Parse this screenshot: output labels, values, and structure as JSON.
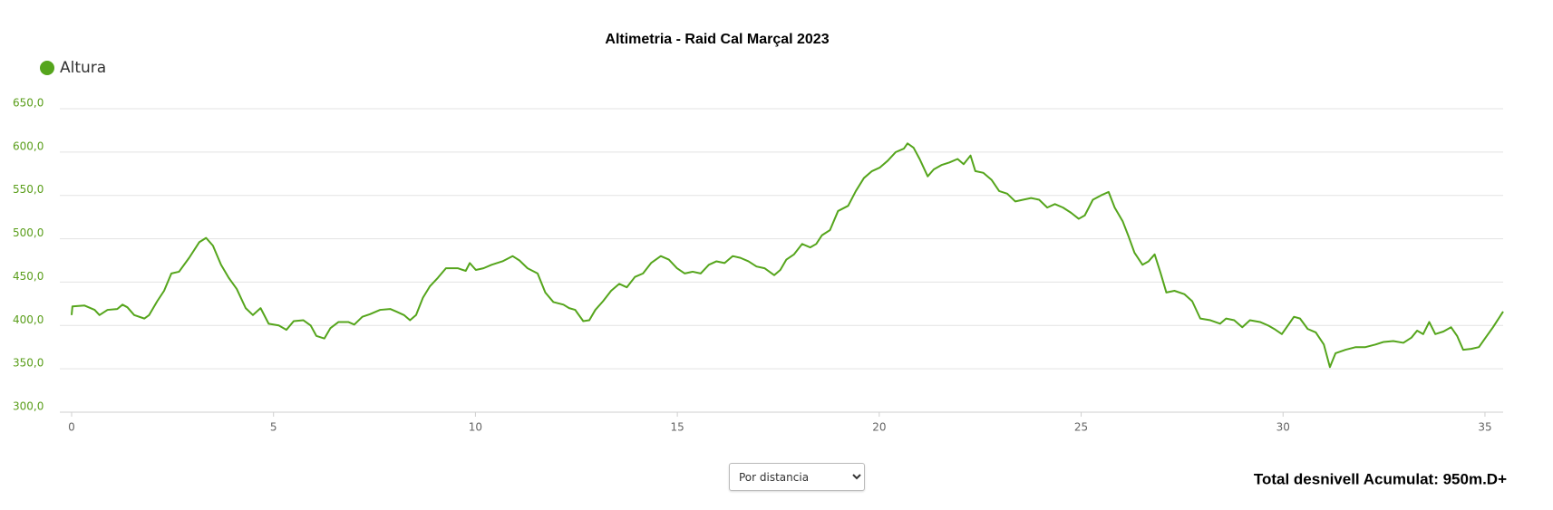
{
  "chart_data": {
    "type": "line",
    "title": "Altimetria - Raid Cal Marçal 2023",
    "annotation": "Total desnivell Acumulat: 950m.D+",
    "x": [
      0,
      0.02,
      0.32,
      0.57,
      0.69,
      0.89,
      1.13,
      1.26,
      1.38,
      1.55,
      1.8,
      1.92,
      2.12,
      2.29,
      2.47,
      2.66,
      2.91,
      3.16,
      3.33,
      3.5,
      3.7,
      3.89,
      4.09,
      4.31,
      4.49,
      4.68,
      4.88,
      5.13,
      5.32,
      5.5,
      5.74,
      5.92,
      6.06,
      6.26,
      6.41,
      6.61,
      6.85,
      7.0,
      7.2,
      7.39,
      7.64,
      7.89,
      8.04,
      8.23,
      8.38,
      8.53,
      8.7,
      8.87,
      9.07,
      9.27,
      9.56,
      9.76,
      9.86,
      10.01,
      10.2,
      10.4,
      10.67,
      10.92,
      11.09,
      11.29,
      11.54,
      11.73,
      11.93,
      12.18,
      12.32,
      12.47,
      12.67,
      12.82,
      12.97,
      13.16,
      13.36,
      13.56,
      13.75,
      13.95,
      14.15,
      14.35,
      14.59,
      14.79,
      14.99,
      15.18,
      15.38,
      15.58,
      15.78,
      15.97,
      16.17,
      16.37,
      16.56,
      16.76,
      16.96,
      17.16,
      17.4,
      17.55,
      17.7,
      17.89,
      18.09,
      18.29,
      18.44,
      18.58,
      18.78,
      18.98,
      19.23,
      19.42,
      19.62,
      19.82,
      20.01,
      20.21,
      20.41,
      20.61,
      20.7,
      20.85,
      21.0,
      21.2,
      21.35,
      21.54,
      21.74,
      21.94,
      22.09,
      22.26,
      22.38,
      22.58,
      22.78,
      22.97,
      23.17,
      23.37,
      23.56,
      23.76,
      23.96,
      24.16,
      24.35,
      24.55,
      24.75,
      24.94,
      25.09,
      25.29,
      25.49,
      25.68,
      25.83,
      26.03,
      26.18,
      26.32,
      26.52,
      26.67,
      26.82,
      26.97,
      27.11,
      27.31,
      27.56,
      27.75,
      27.95,
      28.2,
      28.44,
      28.59,
      28.79,
      28.99,
      29.18,
      29.43,
      29.63,
      29.78,
      29.97,
      30.12,
      30.27,
      30.42,
      30.61,
      30.81,
      31.01,
      31.16,
      31.3,
      31.55,
      31.8,
      32.04,
      32.29,
      32.49,
      32.73,
      32.98,
      33.18,
      33.32,
      33.47,
      33.62,
      33.77,
      33.97,
      34.16,
      34.31,
      34.46,
      34.66,
      34.85,
      35.0,
      35.2,
      35.45
    ],
    "series": [
      {
        "name": "Altura",
        "color": "#55a51c",
        "values": [
          412,
          422,
          423,
          418,
          412,
          418,
          419,
          424,
          421,
          412,
          408,
          412,
          428,
          440,
          460,
          462,
          478,
          496,
          501,
          492,
          470,
          455,
          442,
          420,
          412,
          420,
          402,
          400,
          395,
          405,
          406,
          400,
          388,
          385,
          397,
          404,
          404,
          401,
          410,
          413,
          418,
          419,
          416,
          412,
          406,
          412,
          432,
          445,
          455,
          466,
          466,
          463,
          472,
          464,
          466,
          470,
          474,
          480,
          475,
          466,
          460,
          438,
          427,
          424,
          420,
          418,
          405,
          406,
          418,
          428,
          440,
          448,
          444,
          456,
          460,
          472,
          480,
          476,
          466,
          460,
          462,
          460,
          470,
          474,
          472,
          480,
          478,
          474,
          468,
          466,
          458,
          464,
          476,
          482,
          494,
          490,
          494,
          504,
          510,
          532,
          538,
          555,
          570,
          578,
          582,
          590,
          600,
          604,
          610,
          605,
          592,
          572,
          580,
          585,
          588,
          592,
          586,
          596,
          578,
          576,
          568,
          555,
          552,
          543,
          545,
          547,
          545,
          536,
          540,
          536,
          530,
          523,
          527,
          545,
          550,
          554,
          536,
          520,
          502,
          484,
          470,
          474,
          482,
          460,
          438,
          440,
          436,
          428,
          408,
          406,
          402,
          408,
          406,
          398,
          406,
          404,
          400,
          396,
          390,
          400,
          410,
          408,
          396,
          392,
          378,
          352,
          368,
          372,
          375,
          375,
          378,
          381,
          382,
          380,
          386,
          394,
          390,
          404,
          390,
          393,
          398,
          388,
          372,
          373,
          375,
          385,
          398,
          416
        ]
      }
    ],
    "xlim": [
      0,
      35.45
    ],
    "xticks": [
      0,
      5,
      10,
      15,
      20,
      25,
      30,
      35
    ],
    "ylim": [
      300,
      650
    ],
    "yticks": [
      {
        "value": 300,
        "label": "300,0"
      },
      {
        "value": 350,
        "label": "350,0"
      },
      {
        "value": 400,
        "label": "400,0"
      },
      {
        "value": 450,
        "label": "450,0"
      },
      {
        "value": 500,
        "label": "500,0"
      },
      {
        "value": 550,
        "label": "550,0"
      },
      {
        "value": 600,
        "label": "600,0"
      },
      {
        "value": 650,
        "label": "650,0"
      }
    ],
    "grid": true,
    "legend": "top-left"
  },
  "controls": {
    "x_mode": "Por distancia"
  }
}
